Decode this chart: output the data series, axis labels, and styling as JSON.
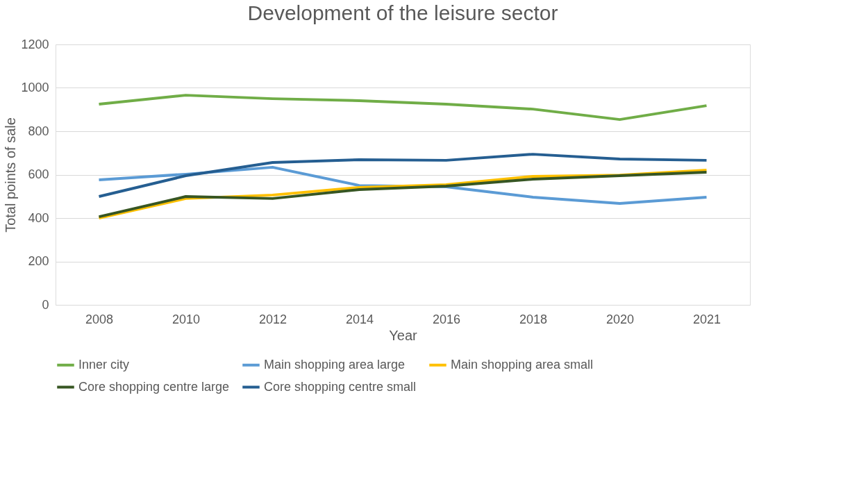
{
  "chart_data": {
    "type": "line",
    "title": "Development of the leisure sector",
    "xlabel": "Year",
    "ylabel": "Total points of sale",
    "categories": [
      "2008",
      "2010",
      "2012",
      "2014",
      "2016",
      "2018",
      "2020",
      "2021"
    ],
    "series": [
      {
        "name": "Inner city",
        "color": "#70ad47",
        "values": [
          925,
          966,
          950,
          941,
          925,
          902,
          854,
          918
        ]
      },
      {
        "name": "Main shopping area large",
        "color": "#5b9bd5",
        "values": [
          576,
          602,
          634,
          550,
          544,
          496,
          467,
          496
        ]
      },
      {
        "name": "Main shopping area small",
        "color": "#ffc000",
        "values": [
          400,
          490,
          506,
          541,
          554,
          592,
          598,
          621
        ]
      },
      {
        "name": "Core shopping centre large",
        "color": "#375623",
        "values": [
          406,
          499,
          490,
          531,
          547,
          579,
          595,
          611
        ]
      },
      {
        "name": "Core shopping centre small",
        "color": "#255e91",
        "values": [
          499,
          595,
          656,
          669,
          666,
          694,
          672,
          666
        ]
      }
    ],
    "ylim": [
      0,
      1200
    ],
    "yticks": [
      0,
      200,
      400,
      600,
      800,
      1000,
      1200
    ],
    "grid": "y",
    "legend": "bottom",
    "marker": "none",
    "line_style": "solid"
  }
}
